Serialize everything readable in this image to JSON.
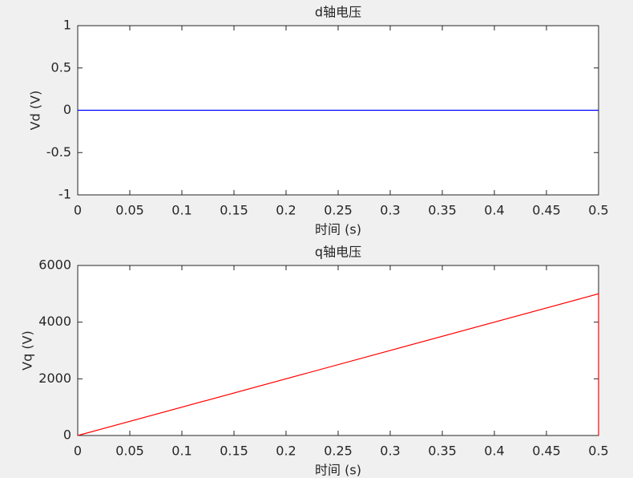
{
  "chart_data": [
    {
      "type": "line",
      "title": "d轴电压",
      "xlabel": "时间 (s)",
      "ylabel": "Vd (V)",
      "x": [
        0,
        0.5
      ],
      "series": [
        {
          "color": "#0000ff",
          "values": [
            0,
            0
          ]
        }
      ],
      "xlim": [
        0,
        0.5
      ],
      "xticks": [
        0,
        0.05,
        0.1,
        0.15,
        0.2,
        0.25,
        0.3,
        0.35,
        0.4,
        0.45,
        0.5
      ],
      "ylim": [
        -1,
        1
      ],
      "yticks": [
        -1,
        -0.5,
        0,
        0.5,
        1
      ]
    },
    {
      "type": "line",
      "title": "q轴电压",
      "xlabel": "时间 (s)",
      "ylabel": "Vq (V)",
      "x": [
        0,
        0.5,
        0.5
      ],
      "series": [
        {
          "color": "#ff0000",
          "values": [
            0,
            5000,
            0
          ]
        }
      ],
      "xlim": [
        0,
        0.5
      ],
      "xticks": [
        0,
        0.05,
        0.1,
        0.15,
        0.2,
        0.25,
        0.3,
        0.35,
        0.4,
        0.45,
        0.5
      ],
      "ylim": [
        0,
        6000
      ],
      "yticks": [
        0,
        2000,
        4000,
        6000
      ]
    }
  ]
}
